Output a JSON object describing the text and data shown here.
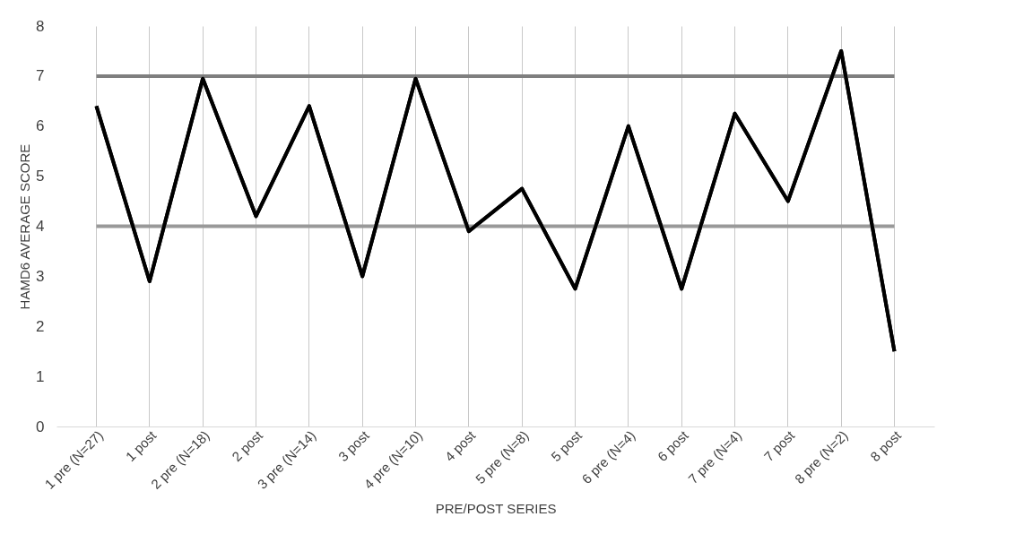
{
  "chart_data": {
    "type": "line",
    "xlabel": "PRE/POST SERIES",
    "ylabel": "HAMD6 AVERAGE SCORE",
    "categories": [
      "1 pre (N=27)",
      "1 post",
      "2 pre (N=18)",
      "2 post",
      "3 pre (N=14)",
      "3 post",
      "4 pre (N=10)",
      "4 post",
      "5 pre (N=8)",
      "5 post",
      "6 pre (N=4)",
      "6 post",
      "7 pre (N=4)",
      "7 post",
      "8 pre (N=2)",
      "8 post"
    ],
    "series": [
      {
        "color": "#000000",
        "values": [
          6.4,
          2.9,
          6.95,
          4.2,
          6.4,
          3.0,
          6.95,
          3.9,
          4.75,
          2.75,
          6.0,
          2.75,
          6.25,
          4.5,
          7.5,
          1.5
        ]
      }
    ],
    "ref_lines": [
      {
        "axis": "y",
        "value": 7,
        "color": "#7f7f7f"
      },
      {
        "axis": "y",
        "value": 4,
        "color": "#999999"
      }
    ],
    "ylim": [
      0,
      8
    ],
    "yticks": [
      0,
      1,
      2,
      3,
      4,
      5,
      6,
      7,
      8
    ],
    "grid": "x",
    "marker": "none",
    "line_style": "solid"
  }
}
